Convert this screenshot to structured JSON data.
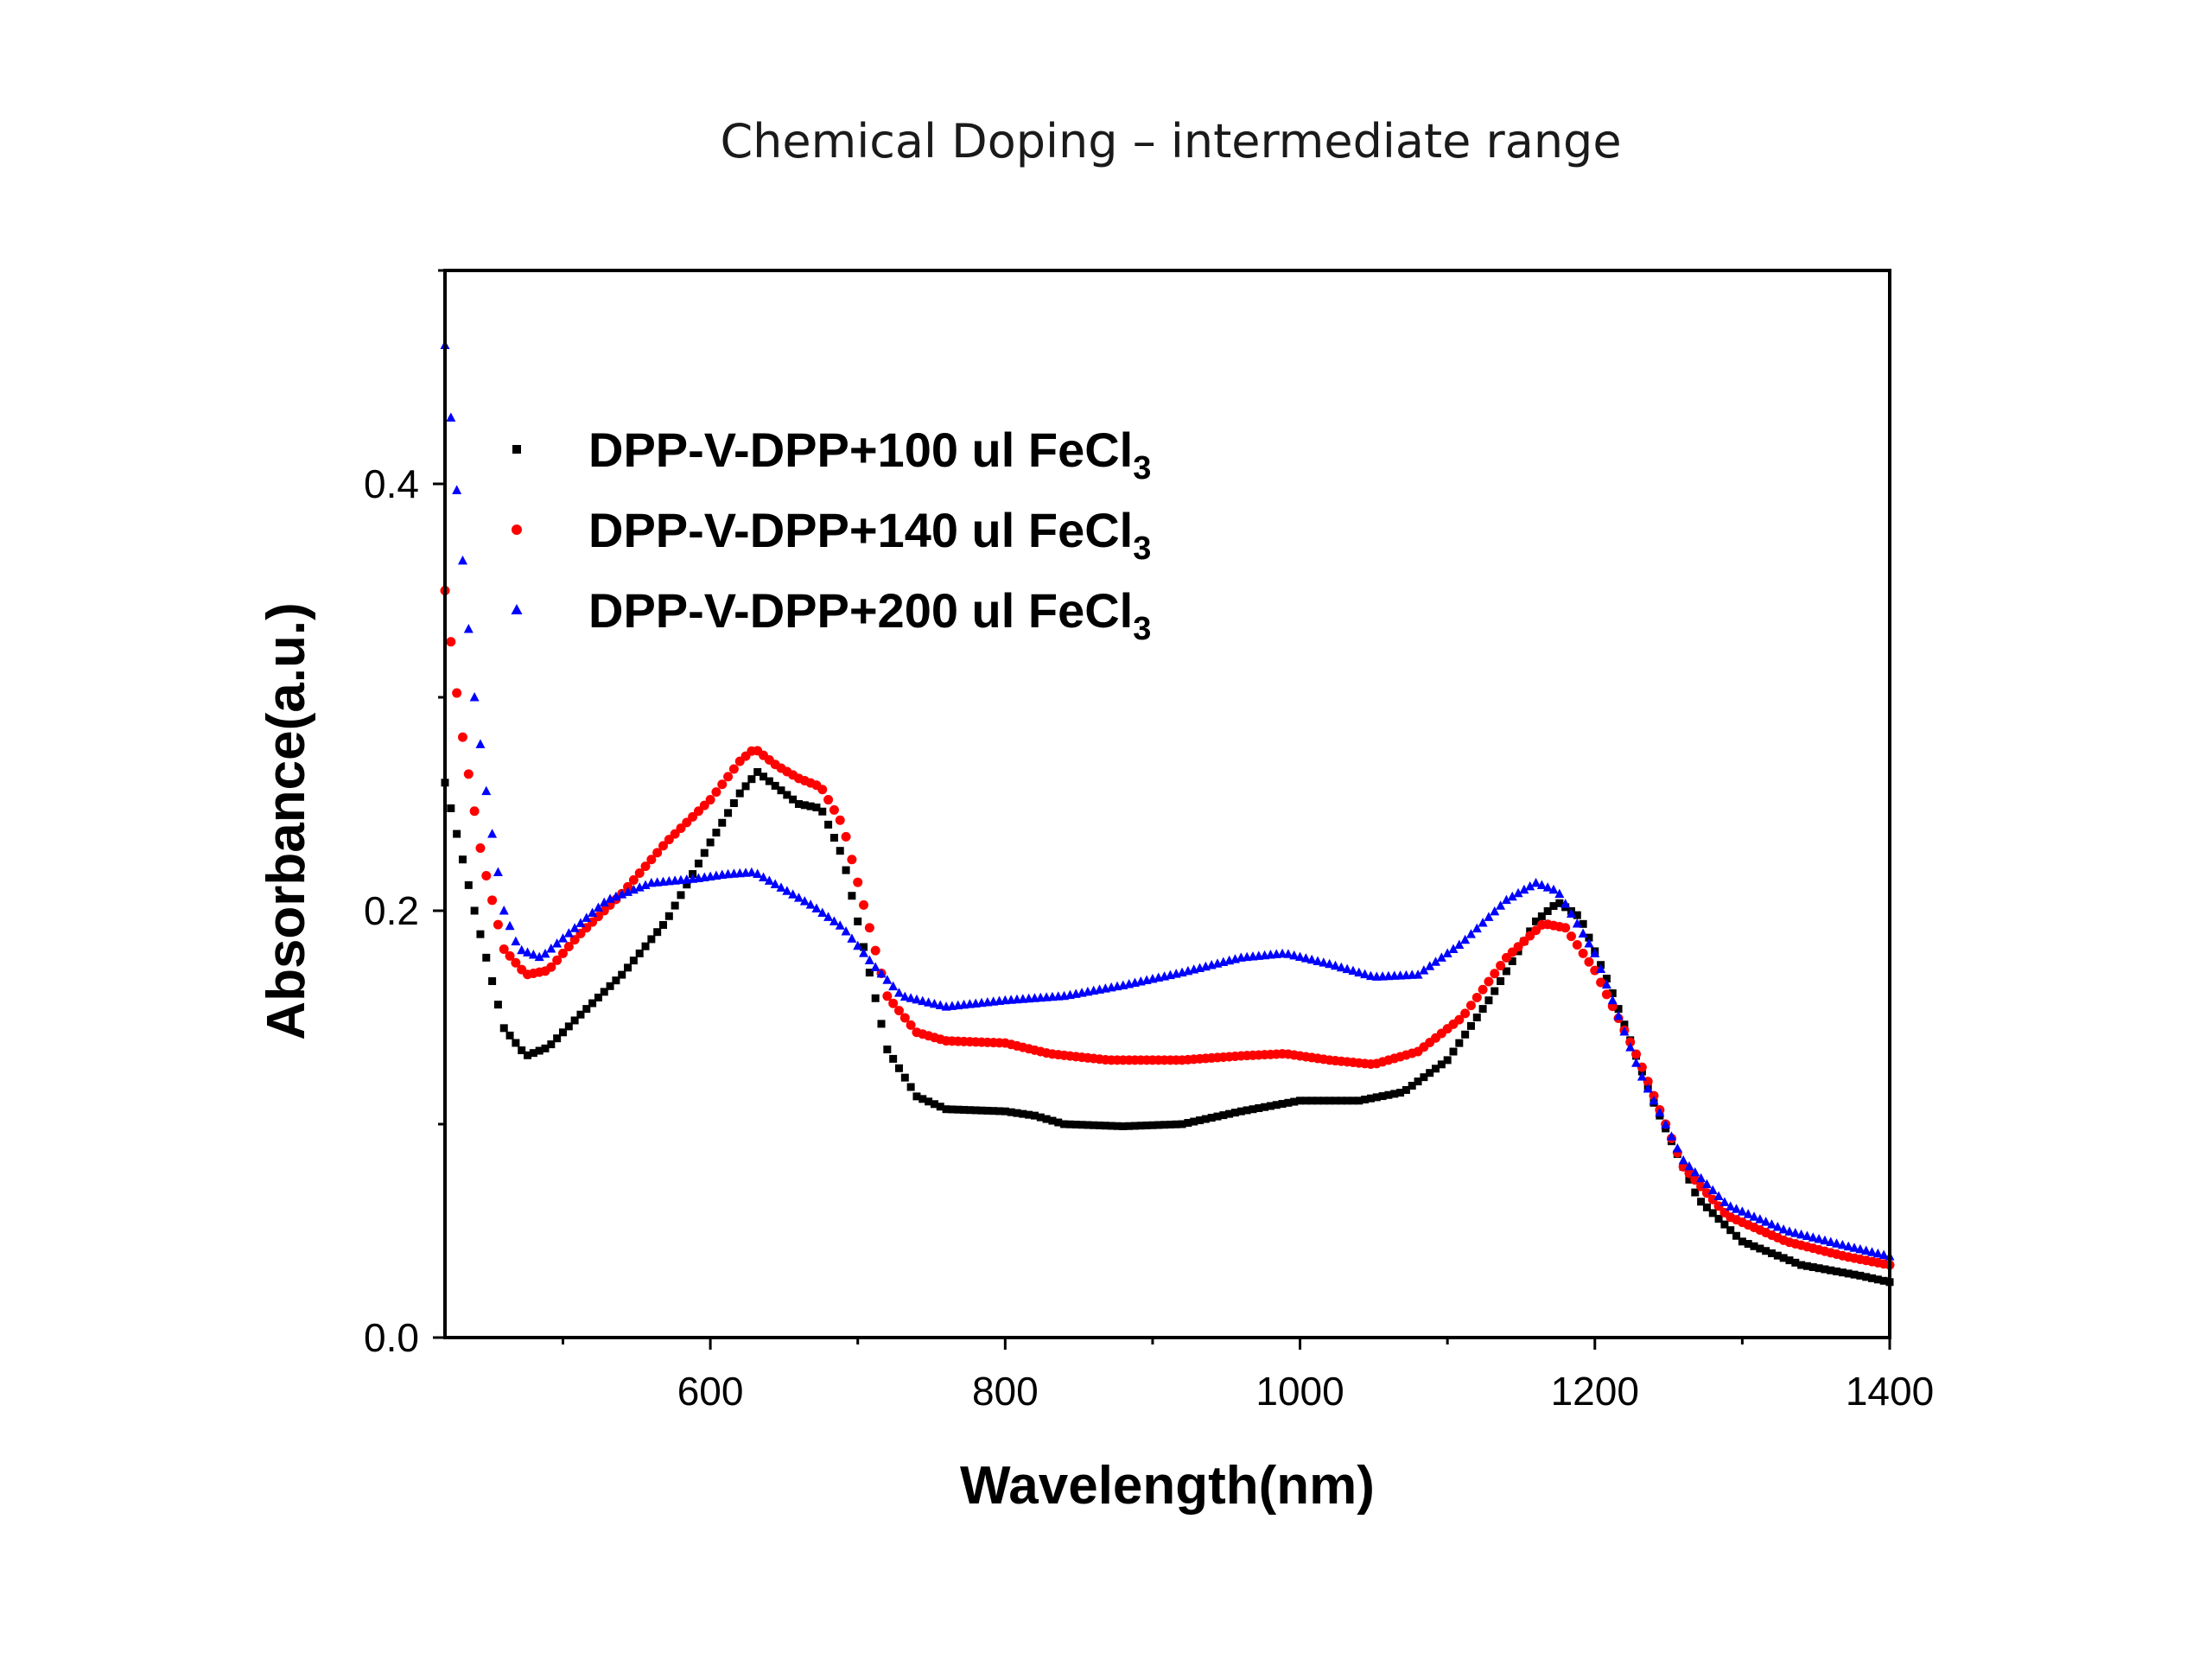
{
  "chart_data": {
    "type": "scatter",
    "title": "Chemical Doping – intermediate range",
    "xlabel": "Wavelength(nm)",
    "ylabel": "Absorbance(a.u.)",
    "xlim": [
      420,
      1400
    ],
    "ylim": [
      0.0,
      0.5
    ],
    "x_ticks": [
      600,
      800,
      1000,
      1200,
      1400
    ],
    "x_tick_labels": [
      "600",
      "800",
      "1000",
      "1200",
      "1400"
    ],
    "y_ticks": [
      0.0,
      0.2,
      0.4
    ],
    "y_tick_labels": [
      "0.0",
      "0.2",
      "0.4"
    ],
    "grid": false,
    "legend_position": "top-left",
    "series": [
      {
        "name": "DPP-V-DPP+100 ul FeCl",
        "name_subscript": "3",
        "color": "#000000",
        "marker": "square",
        "points": [
          [
            420,
            0.26
          ],
          [
            440,
            0.2
          ],
          [
            460,
            0.145
          ],
          [
            475,
            0.132
          ],
          [
            490,
            0.136
          ],
          [
            510,
            0.15
          ],
          [
            540,
            0.17
          ],
          [
            570,
            0.195
          ],
          [
            600,
            0.232
          ],
          [
            620,
            0.255
          ],
          [
            632,
            0.265
          ],
          [
            645,
            0.258
          ],
          [
            660,
            0.25
          ],
          [
            675,
            0.248
          ],
          [
            690,
            0.225
          ],
          [
            705,
            0.18
          ],
          [
            720,
            0.135
          ],
          [
            740,
            0.113
          ],
          [
            760,
            0.107
          ],
          [
            800,
            0.106
          ],
          [
            820,
            0.104
          ],
          [
            840,
            0.1
          ],
          [
            880,
            0.099
          ],
          [
            920,
            0.1
          ],
          [
            960,
            0.106
          ],
          [
            1000,
            0.111
          ],
          [
            1040,
            0.111
          ],
          [
            1070,
            0.115
          ],
          [
            1100,
            0.13
          ],
          [
            1130,
            0.16
          ],
          [
            1160,
            0.195
          ],
          [
            1175,
            0.204
          ],
          [
            1190,
            0.197
          ],
          [
            1210,
            0.165
          ],
          [
            1240,
            0.11
          ],
          [
            1270,
            0.065
          ],
          [
            1300,
            0.045
          ],
          [
            1340,
            0.034
          ],
          [
            1380,
            0.029
          ],
          [
            1400,
            0.026
          ]
        ]
      },
      {
        "name": "DPP-V-DPP+140 ul FeCl",
        "name_subscript": "3",
        "color": "#ff0000",
        "marker": "circle",
        "points": [
          [
            420,
            0.35
          ],
          [
            430,
            0.29
          ],
          [
            445,
            0.225
          ],
          [
            460,
            0.182
          ],
          [
            475,
            0.17
          ],
          [
            490,
            0.172
          ],
          [
            510,
            0.188
          ],
          [
            540,
            0.208
          ],
          [
            570,
            0.232
          ],
          [
            600,
            0.252
          ],
          [
            620,
            0.27
          ],
          [
            630,
            0.276
          ],
          [
            645,
            0.268
          ],
          [
            660,
            0.262
          ],
          [
            675,
            0.258
          ],
          [
            690,
            0.24
          ],
          [
            705,
            0.2
          ],
          [
            720,
            0.16
          ],
          [
            740,
            0.143
          ],
          [
            760,
            0.139
          ],
          [
            800,
            0.138
          ],
          [
            830,
            0.133
          ],
          [
            870,
            0.13
          ],
          [
            920,
            0.13
          ],
          [
            960,
            0.132
          ],
          [
            990,
            0.133
          ],
          [
            1020,
            0.13
          ],
          [
            1050,
            0.128
          ],
          [
            1080,
            0.134
          ],
          [
            1110,
            0.15
          ],
          [
            1140,
            0.178
          ],
          [
            1165,
            0.194
          ],
          [
            1180,
            0.192
          ],
          [
            1200,
            0.172
          ],
          [
            1230,
            0.13
          ],
          [
            1260,
            0.08
          ],
          [
            1290,
            0.057
          ],
          [
            1330,
            0.045
          ],
          [
            1370,
            0.038
          ],
          [
            1400,
            0.034
          ]
        ]
      },
      {
        "name": "DPP-V-DPP+200 ul FeCl",
        "name_subscript": "3",
        "color": "#0000ff",
        "marker": "triangle",
        "points": [
          [
            420,
            0.465
          ],
          [
            430,
            0.38
          ],
          [
            440,
            0.3
          ],
          [
            450,
            0.245
          ],
          [
            460,
            0.2
          ],
          [
            470,
            0.182
          ],
          [
            485,
            0.178
          ],
          [
            505,
            0.19
          ],
          [
            530,
            0.205
          ],
          [
            560,
            0.213
          ],
          [
            590,
            0.215
          ],
          [
            610,
            0.217
          ],
          [
            630,
            0.218
          ],
          [
            650,
            0.21
          ],
          [
            670,
            0.202
          ],
          [
            690,
            0.192
          ],
          [
            710,
            0.175
          ],
          [
            730,
            0.16
          ],
          [
            760,
            0.155
          ],
          [
            800,
            0.158
          ],
          [
            840,
            0.16
          ],
          [
            880,
            0.165
          ],
          [
            920,
            0.171
          ],
          [
            960,
            0.178
          ],
          [
            990,
            0.18
          ],
          [
            1020,
            0.175
          ],
          [
            1050,
            0.169
          ],
          [
            1080,
            0.17
          ],
          [
            1110,
            0.185
          ],
          [
            1140,
            0.205
          ],
          [
            1160,
            0.213
          ],
          [
            1175,
            0.209
          ],
          [
            1200,
            0.18
          ],
          [
            1230,
            0.125
          ],
          [
            1260,
            0.083
          ],
          [
            1290,
            0.062
          ],
          [
            1330,
            0.05
          ],
          [
            1370,
            0.043
          ],
          [
            1400,
            0.038
          ]
        ]
      }
    ]
  }
}
